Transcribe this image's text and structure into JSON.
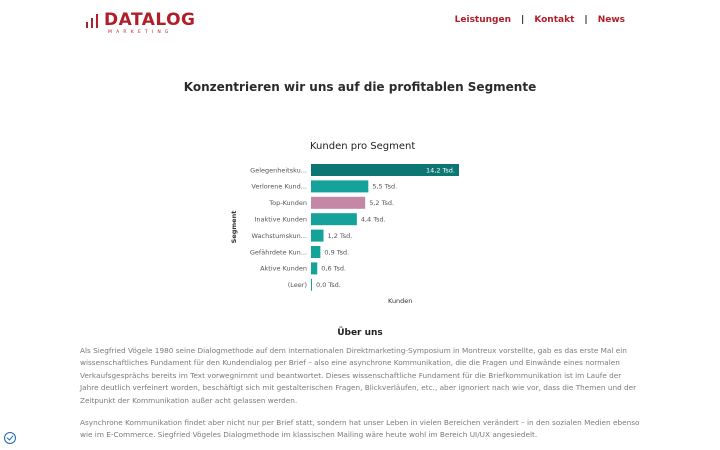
{
  "header": {
    "logo_text": "DATALOG",
    "logo_sub": "MARKETING",
    "nav": [
      "Leistungen",
      "Kontakt",
      "News"
    ],
    "nav_separator": "|"
  },
  "headline": "Konzentrieren wir uns auf die profitablen Segmente",
  "chart_data": {
    "type": "bar",
    "orientation": "horizontal",
    "title": "Kunden pro Segment",
    "ylabel": "Segment",
    "xlabel": "Kunden",
    "categories": [
      "Gelegenheitsku...",
      "Verlorene Kund...",
      "Top-Kunden",
      "Inaktive Kunden",
      "Wachstumskun...",
      "Gefährdete Kun...",
      "Aktive Kunden",
      "(Leer)"
    ],
    "values": [
      14.2,
      5.5,
      5.2,
      4.4,
      1.2,
      0.9,
      0.6,
      0.0
    ],
    "data_labels": [
      "14,2 Tsd.",
      "5,5 Tsd.",
      "5,2 Tsd.",
      "4,4 Tsd.",
      "1,2 Tsd.",
      "0,9 Tsd.",
      "0,6 Tsd.",
      "0,0 Tsd."
    ],
    "colors": [
      "#0b7672",
      "#14a29b",
      "#c487a6",
      "#14a29b",
      "#14a29b",
      "#14a29b",
      "#14a29b",
      "#14a29b"
    ],
    "label_colors": [
      "#ffffff",
      "#555555",
      "#555555",
      "#555555",
      "#555555",
      "#555555",
      "#555555",
      "#555555"
    ],
    "xlim": [
      0,
      14.2
    ]
  },
  "about": {
    "title": "Über uns",
    "p1": "Als Siegfried Vögele 1980 seine Dialogmethode auf dem internationalen Direktmarketing-Symposium in Montreux vorstellte, gab es das erste Mal ein wissenschaftliches Fundament für den Kundendialog per Brief – also eine asynchrone Kommunikation, die die Fragen und Einwände eines normalen Verkaufsgesprächs bereits im Text vorwegnimmt und beantwortet. Dieses wissenschaftliche Fundament für die Briefkommunikation ist im Laufe der Jahre deutlich verfeinert worden, beschäftigt sich mit gestalterischen Fragen, Blickverläufen, etc., aber ignoriert nach wie vor, dass die Themen und der Zeitpunkt der Kommunikation außer acht gelassen werden.",
    "p2": "Asynchrone Kommunikation findet aber nicht nur per Brief statt, sondern hat unser Leben in vielen Bereichen verändert – in den sozialen Medien ebenso wie im E-Commerce. Siegfried Vögeles Dialogmethode im klassischen Mailing wäre heute wohl im Bereich UI/UX angesiedelt."
  },
  "badge_icon": "shield-check-icon"
}
